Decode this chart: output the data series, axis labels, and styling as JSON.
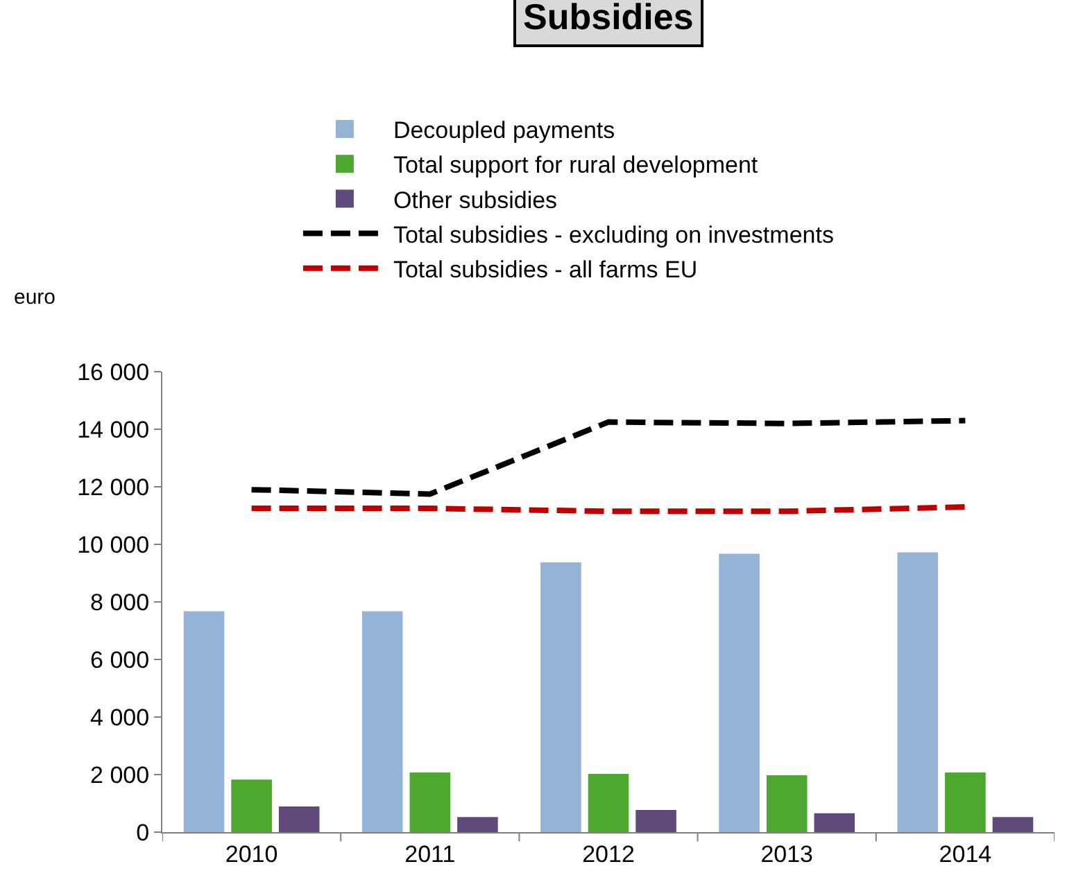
{
  "chart_data": {
    "type": "bar",
    "title": "Subsidies",
    "ylabel": "euro",
    "categories": [
      "2010",
      "2011",
      "2012",
      "2013",
      "2014"
    ],
    "series": [
      {
        "name": "Decoupled payments",
        "color": "#95b3d7",
        "values": [
          7650,
          7650,
          9350,
          9650,
          9700
        ]
      },
      {
        "name": "Total support for rural development",
        "color": "#4ea72e",
        "values": [
          1800,
          2050,
          2000,
          1950,
          2050
        ]
      },
      {
        "name": "Other subsidies",
        "color": "#604a7b",
        "values": [
          870,
          500,
          750,
          630,
          500
        ]
      },
      {
        "name": "Total subsidies - excluding on investments",
        "type": "line",
        "color": "#000000",
        "line_style": "dashed",
        "values": [
          11900,
          11750,
          14250,
          14200,
          14300
        ]
      },
      {
        "name": "Total subsidies - all farms EU",
        "type": "line",
        "color": "#c00000",
        "line_style": "dashed",
        "values": [
          11250,
          11250,
          11150,
          11150,
          11300
        ]
      }
    ],
    "ylim": [
      0,
      16000
    ],
    "yticks": [
      0,
      {
        "value": 2000,
        "label": "2 000"
      },
      {
        "value": 4000,
        "label": "4 000"
      },
      {
        "value": 6000,
        "label": "6 000"
      },
      {
        "value": 8000,
        "label": "8 000"
      },
      {
        "value": 10000,
        "label": "10 000"
      },
      {
        "value": 12000,
        "label": "12 000"
      },
      {
        "value": 14000,
        "label": "14 000"
      },
      {
        "value": 16000,
        "label": "16 000"
      }
    ],
    "legend": "top",
    "marker": "none"
  }
}
